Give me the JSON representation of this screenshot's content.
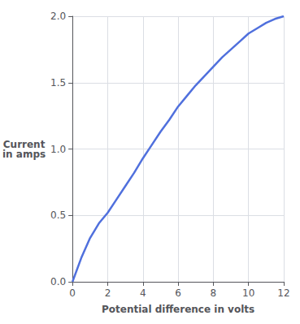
{
  "chart_data": {
    "type": "line",
    "xlabel": "Potential difference in volts",
    "ylabel": "Current\nin amps",
    "x": [
      0,
      0.5,
      1.0,
      1.5,
      2.0,
      2.5,
      3.0,
      3.5,
      4.0,
      4.5,
      5.0,
      5.5,
      6.0,
      6.5,
      7.0,
      7.5,
      8.0,
      8.5,
      9.0,
      9.5,
      10.0,
      10.5,
      11.0,
      11.5,
      12.0
    ],
    "values": [
      0,
      0.18,
      0.33,
      0.44,
      0.52,
      0.62,
      0.72,
      0.82,
      0.93,
      1.03,
      1.13,
      1.22,
      1.32,
      1.4,
      1.48,
      1.55,
      1.62,
      1.69,
      1.75,
      1.81,
      1.87,
      1.91,
      1.95,
      1.98,
      2.0
    ],
    "xlim": [
      0,
      12
    ],
    "ylim": [
      0,
      2.0
    ],
    "xticks": [
      0,
      2,
      4,
      6,
      8,
      10,
      12
    ],
    "yticks": [
      {
        "value": 0,
        "label": "0.0"
      },
      0.5,
      {
        "value": 1,
        "label": "1.0"
      },
      1.5,
      {
        "value": 2,
        "label": "2.0"
      }
    ],
    "grid": true
  }
}
